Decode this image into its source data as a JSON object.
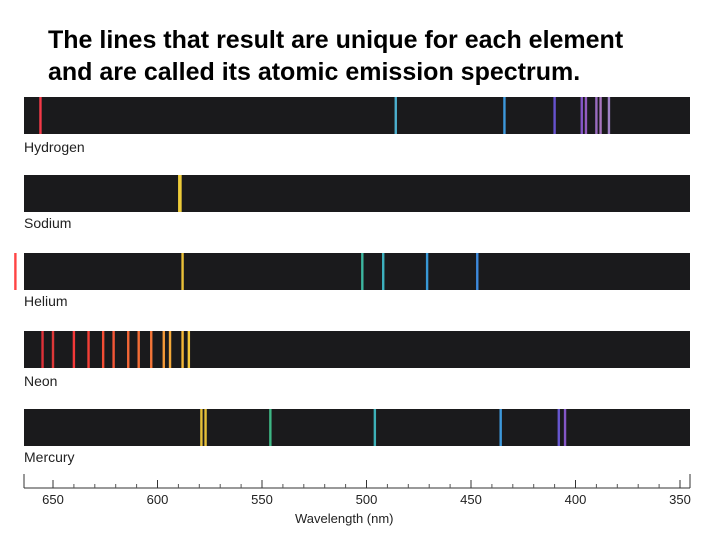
{
  "slide": {
    "title_line1": "The lines that result are unique for each element",
    "title_line2": "and are called its atomic emission spectrum."
  },
  "chart_data": {
    "type": "spectrum",
    "xlabel": "Wavelength (nm)",
    "xlim": [
      650,
      350
    ],
    "ticks": [
      650,
      600,
      550,
      500,
      450,
      400,
      350
    ],
    "spectra": [
      {
        "name": "Hydrogen",
        "lines": [
          {
            "nm": 656,
            "color": "#ff3b4a"
          },
          {
            "nm": 486,
            "color": "#4fb7d8"
          },
          {
            "nm": 434,
            "color": "#3f9fe6"
          },
          {
            "nm": 410,
            "color": "#6a55d8"
          },
          {
            "nm": 397,
            "color": "#8a5ad0"
          },
          {
            "nm": 395,
            "color": "#9a60c8"
          },
          {
            "nm": 390,
            "color": "#a070c8"
          },
          {
            "nm": 388,
            "color": "#b07ac8"
          },
          {
            "nm": 384,
            "color": "#a888d0"
          }
        ]
      },
      {
        "name": "Sodium",
        "lines": [
          {
            "nm": 589.6,
            "color": "#f2d03a"
          },
          {
            "nm": 589.0,
            "color": "#f2d03a"
          }
        ]
      },
      {
        "name": "Helium",
        "lines": [
          {
            "nm": 668,
            "color": "#ff3a3a"
          },
          {
            "nm": 588,
            "color": "#f5c93a"
          },
          {
            "nm": 502,
            "color": "#3fbfa8"
          },
          {
            "nm": 492,
            "color": "#3fb9c8"
          },
          {
            "nm": 471,
            "color": "#3a9fe0"
          },
          {
            "nm": 447,
            "color": "#3f8fe6"
          }
        ]
      },
      {
        "name": "Neon",
        "lines": [
          {
            "nm": 655,
            "color": "#e8333a"
          },
          {
            "nm": 650,
            "color": "#e83a3a"
          },
          {
            "nm": 640,
            "color": "#ff3a3a"
          },
          {
            "nm": 633,
            "color": "#ff4038"
          },
          {
            "nm": 626,
            "color": "#ff5036"
          },
          {
            "nm": 621,
            "color": "#ff5a38"
          },
          {
            "nm": 614,
            "color": "#ff6a38"
          },
          {
            "nm": 609,
            "color": "#ff7238"
          },
          {
            "nm": 603,
            "color": "#ff7a3a"
          },
          {
            "nm": 597,
            "color": "#ffa03a"
          },
          {
            "nm": 594,
            "color": "#ffb03a"
          },
          {
            "nm": 588,
            "color": "#ffc038"
          },
          {
            "nm": 585,
            "color": "#ffd23a"
          }
        ]
      },
      {
        "name": "Mercury",
        "lines": [
          {
            "nm": 579,
            "color": "#f0c83a"
          },
          {
            "nm": 577,
            "color": "#f0c83a"
          },
          {
            "nm": 546,
            "color": "#3fbf8a"
          },
          {
            "nm": 496,
            "color": "#3fb8c0"
          },
          {
            "nm": 435.8,
            "color": "#3f9fe6"
          },
          {
            "nm": 408,
            "color": "#6a5ad8"
          },
          {
            "nm": 405,
            "color": "#8a5ad0"
          }
        ]
      }
    ]
  }
}
